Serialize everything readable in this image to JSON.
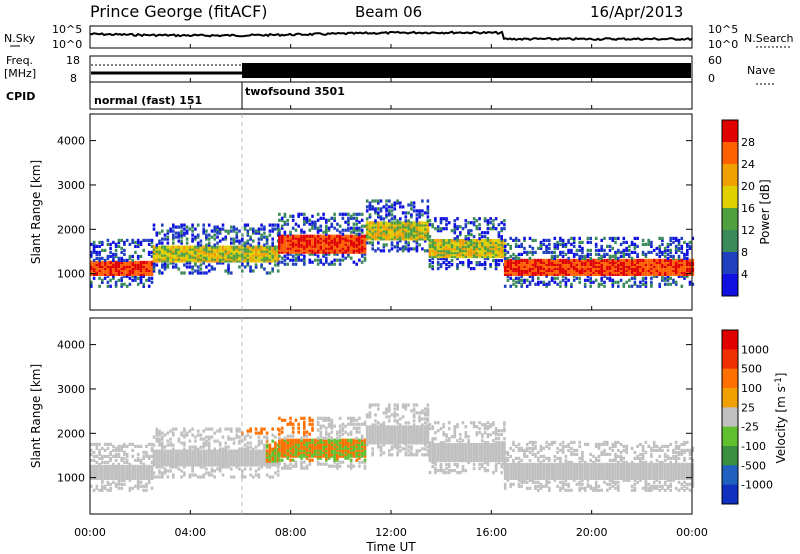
{
  "chart_data": {
    "type": "heatmap",
    "title": "Prince George (fitACF)",
    "beam": "Beam 06",
    "date": "16/Apr/2013",
    "xlabel": "Time UT",
    "x_ticks": [
      "00:00",
      "04:00",
      "08:00",
      "12:00",
      "16:00",
      "20:00",
      "00:00"
    ],
    "xlim_hours": [
      0,
      24
    ],
    "panels": {
      "noise": {
        "left_label": "N.Sky",
        "right_label": "N.Search",
        "left_ticks": [
          "10^5",
          "10^0"
        ],
        "right_ticks": [
          "10^5",
          "10^0"
        ]
      },
      "freq": {
        "left_label": "Freq.",
        "left_unit": "[MHz]",
        "left_ticks": [
          "18",
          "8"
        ],
        "right_label": "Nave",
        "right_ticks": [
          "60",
          "0"
        ]
      },
      "cpid": {
        "label": "CPID",
        "segments": [
          {
            "name": "normal (fast) 151",
            "start_hour": 0,
            "end_hour": 6
          },
          {
            "name": "twofsound 3501",
            "start_hour": 6,
            "end_hour": 24
          }
        ]
      },
      "power": {
        "ylabel": "Slant Range [km]",
        "yticks": [
          "4000",
          "3000",
          "2000",
          "1000"
        ],
        "ylim_km": [
          180,
          4600
        ],
        "colorbar_label": "Power [dB]",
        "colorbar_ticks": [
          "28",
          "24",
          "20",
          "16",
          "12",
          "8",
          "4"
        ],
        "colors": [
          "#1010e0",
          "#2040c0",
          "#3a8a5a",
          "#50a040",
          "#e0d000",
          "#f0a000",
          "#ff6000",
          "#e00000"
        ]
      },
      "velocity": {
        "ylabel": "Slant Range [km]",
        "yticks": [
          "4000",
          "3000",
          "2000",
          "1000"
        ],
        "ylim_km": [
          180,
          4600
        ],
        "colorbar_label": "Velocity [m s",
        "colorbar_label_sup": "-1",
        "colorbar_label_end": "]",
        "colorbar_ticks": [
          "1000",
          "500",
          "100",
          "25",
          "-25",
          "-100",
          "-500",
          "-1000"
        ],
        "colors": [
          "#1030c0",
          "#2060c0",
          "#3a9040",
          "#60c030",
          "#c0c0c0",
          "#f0a000",
          "#ff7000",
          "#f03000",
          "#e00000"
        ]
      }
    },
    "scatter_bands": [
      {
        "t0": 0.0,
        "t1": 2.5,
        "r0": 1000,
        "r1": 1300,
        "pwr": "high"
      },
      {
        "t0": 2.5,
        "t1": 7.5,
        "r0": 1300,
        "r1": 1650,
        "pwr": "mid"
      },
      {
        "t0": 7.5,
        "t1": 11.0,
        "r0": 1500,
        "r1": 1900,
        "pwr": "high"
      },
      {
        "t0": 11.0,
        "t1": 13.5,
        "r0": 1800,
        "r1": 2200,
        "pwr": "low"
      },
      {
        "t0": 13.5,
        "t1": 16.5,
        "r0": 1400,
        "r1": 1800,
        "pwr": "mid"
      },
      {
        "t0": 16.5,
        "t1": 24.0,
        "r0": 1000,
        "r1": 1350,
        "pwr": "high"
      }
    ]
  }
}
